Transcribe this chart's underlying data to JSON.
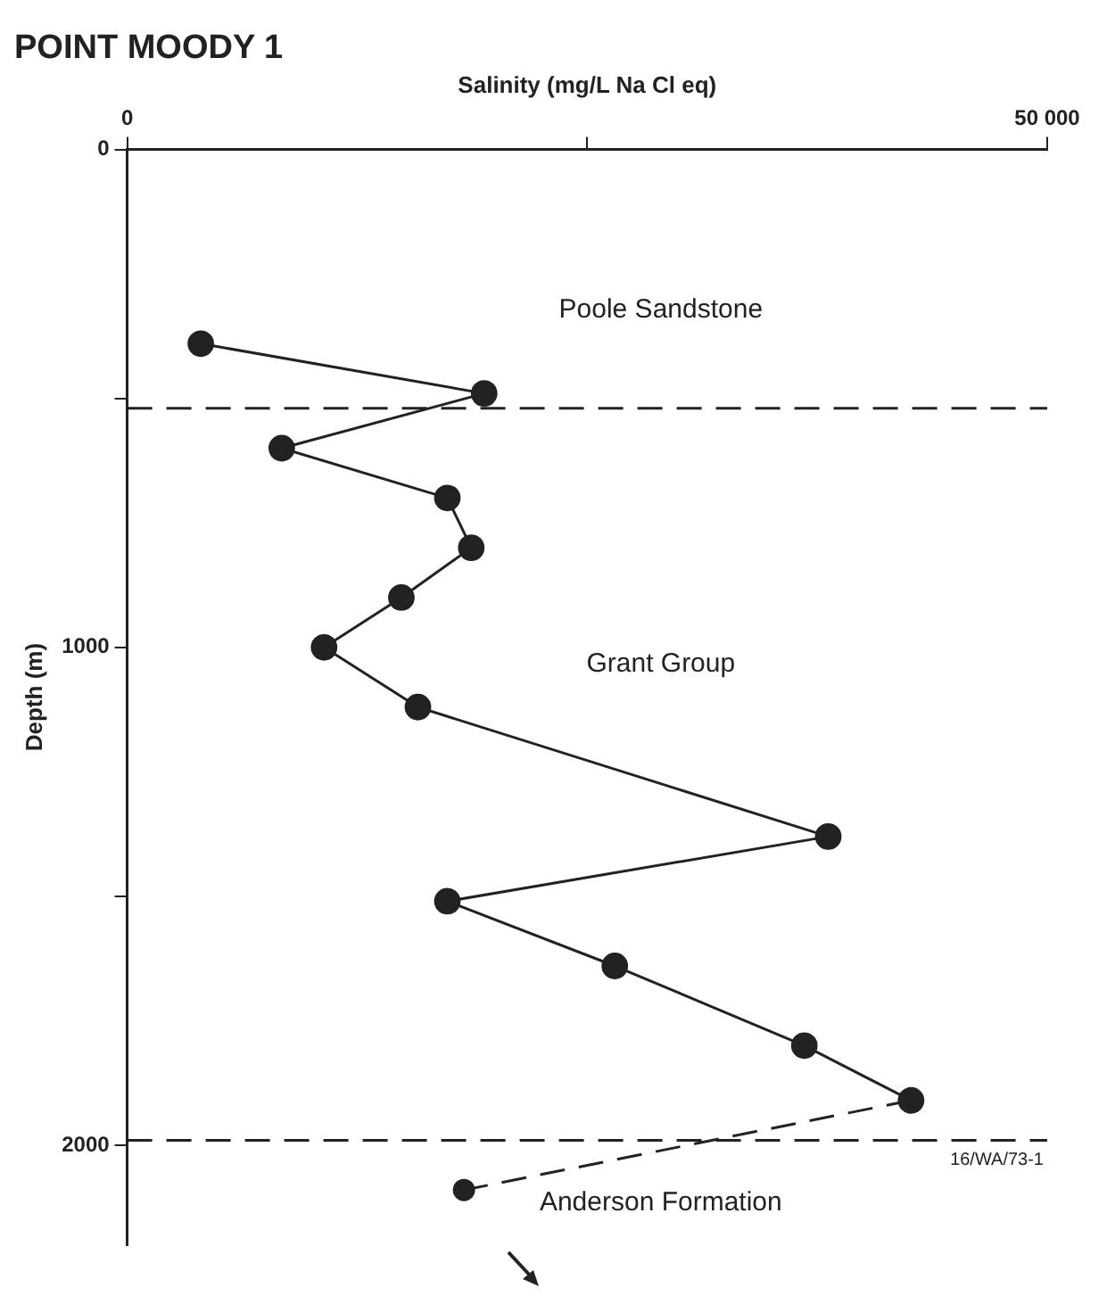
{
  "chart_data": {
    "type": "line",
    "title": "POINT MOODY 1",
    "xlabel": "Salinity (mg/L Na Cl eq)",
    "ylabel": "Depth (m)",
    "series": [
      {
        "color": "#222222",
        "line_style": "solid",
        "x": [
          4000,
          19400,
          8400,
          17400,
          18700,
          14900,
          10700,
          15800,
          38100,
          17400,
          26500,
          36800,
          42600
        ],
        "values": [
          390,
          490,
          600,
          700,
          800,
          900,
          1000,
          1120,
          1380,
          1510,
          1640,
          1800,
          1910
        ]
      },
      {
        "color": "#222222",
        "line_style": "dashed",
        "x": [
          42600,
          18300
        ],
        "values": [
          1910,
          2090
        ]
      }
    ],
    "xlim": [
      0,
      50000
    ],
    "xticks": [
      0,
      {
        "value": 25000,
        "label": null
      },
      {
        "value": 50000,
        "label": "50 000"
      }
    ],
    "ylim": [
      2200,
      0
    ],
    "yticks": [
      0,
      {
        "value": 500,
        "label": null
      },
      1000,
      {
        "value": 1500,
        "label": null
      },
      2000
    ],
    "grid": false,
    "legend": false,
    "marker": "circle",
    "ref_lines": [
      {
        "axis": "y",
        "value": 520,
        "color": "#222222",
        "line_style": "dashed"
      },
      {
        "axis": "y",
        "value": 1990,
        "color": "#222222",
        "line_style": "dashed"
      }
    ],
    "annotations": [
      "Poole Sandstone",
      "Grant Group",
      "Anderson Formation",
      "16/WA/73-1"
    ]
  }
}
